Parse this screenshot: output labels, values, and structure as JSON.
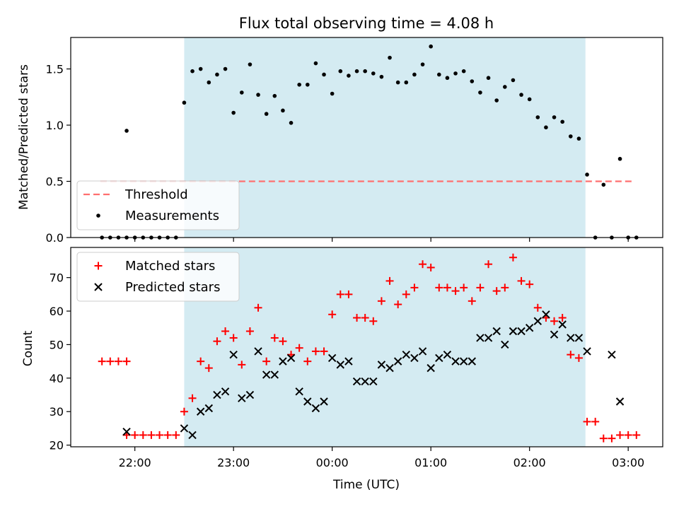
{
  "chart_data": [
    {
      "type": "scatter",
      "title": "Flux total observing time = 4.08 h",
      "xlabel": "",
      "ylabel": "Matched/Predicted stars",
      "ylim": [
        0,
        1.78
      ],
      "yticks": [
        "0.0",
        "0.5",
        "1.0",
        "1.5"
      ],
      "ytick_values": [
        0,
        0.5,
        1.0,
        1.5
      ],
      "xlim": [
        "21:21",
        "03:21"
      ],
      "shaded_region": {
        "from": "22:30",
        "to": "02:34",
        "color": "#add8e6"
      },
      "threshold": {
        "name": "Threshold",
        "value": 0.5,
        "from": "21:39",
        "to": "03:03",
        "color": "#ff6f6f"
      },
      "legend": {
        "position": "lower-left",
        "entries": [
          "Threshold",
          "Measurements"
        ]
      },
      "series": [
        {
          "name": "Measurements",
          "color": "#000000",
          "points": [
            [
              "21:40",
              0.0
            ],
            [
              "21:45",
              0.0
            ],
            [
              "21:50",
              0.0
            ],
            [
              "21:55",
              0.0
            ],
            [
              "21:55",
              0.95
            ],
            [
              "22:00",
              0.0
            ],
            [
              "22:05",
              0.0
            ],
            [
              "22:10",
              0.0
            ],
            [
              "22:15",
              0.0
            ],
            [
              "22:20",
              0.0
            ],
            [
              "22:25",
              0.0
            ],
            [
              "22:30",
              1.2
            ],
            [
              "22:35",
              1.48
            ],
            [
              "22:40",
              1.5
            ],
            [
              "22:45",
              1.38
            ],
            [
              "22:50",
              1.45
            ],
            [
              "22:55",
              1.5
            ],
            [
              "23:00",
              1.11
            ],
            [
              "23:05",
              1.29
            ],
            [
              "23:10",
              1.54
            ],
            [
              "23:15",
              1.27
            ],
            [
              "23:20",
              1.1
            ],
            [
              "23:25",
              1.26
            ],
            [
              "23:30",
              1.13
            ],
            [
              "23:35",
              1.02
            ],
            [
              "23:40",
              1.36
            ],
            [
              "23:45",
              1.36
            ],
            [
              "23:50",
              1.55
            ],
            [
              "23:55",
              1.45
            ],
            [
              "00:00",
              1.28
            ],
            [
              "00:05",
              1.48
            ],
            [
              "00:10",
              1.44
            ],
            [
              "00:15",
              1.48
            ],
            [
              "00:20",
              1.48
            ],
            [
              "00:25",
              1.46
            ],
            [
              "00:30",
              1.43
            ],
            [
              "00:35",
              1.6
            ],
            [
              "00:40",
              1.38
            ],
            [
              "00:45",
              1.38
            ],
            [
              "00:50",
              1.45
            ],
            [
              "00:55",
              1.54
            ],
            [
              "01:00",
              1.7
            ],
            [
              "01:05",
              1.45
            ],
            [
              "01:10",
              1.42
            ],
            [
              "01:15",
              1.46
            ],
            [
              "01:20",
              1.48
            ],
            [
              "01:25",
              1.39
            ],
            [
              "01:30",
              1.29
            ],
            [
              "01:35",
              1.42
            ],
            [
              "01:40",
              1.22
            ],
            [
              "01:45",
              1.34
            ],
            [
              "01:50",
              1.4
            ],
            [
              "01:55",
              1.27
            ],
            [
              "02:00",
              1.23
            ],
            [
              "02:05",
              1.07
            ],
            [
              "02:10",
              0.98
            ],
            [
              "02:15",
              1.07
            ],
            [
              "02:20",
              1.03
            ],
            [
              "02:25",
              0.9
            ],
            [
              "02:30",
              0.88
            ],
            [
              "02:35",
              0.56
            ],
            [
              "02:40",
              0.0
            ],
            [
              "02:45",
              0.47
            ],
            [
              "02:50",
              0.0
            ],
            [
              "02:55",
              0.7
            ],
            [
              "03:00",
              0.0
            ],
            [
              "03:05",
              0.0
            ]
          ]
        }
      ]
    },
    {
      "type": "scatter",
      "title": "",
      "xlabel": "Time (UTC)",
      "ylabel": "Count",
      "ylim": [
        19.5,
        79
      ],
      "yticks": [
        "20",
        "30",
        "40",
        "50",
        "60",
        "70"
      ],
      "ytick_values": [
        20,
        30,
        40,
        50,
        60,
        70
      ],
      "xlim": [
        "21:21",
        "03:21"
      ],
      "xticks": [
        "22:00",
        "23:00",
        "00:00",
        "01:00",
        "02:00",
        "03:00"
      ],
      "shaded_region": {
        "from": "22:30",
        "to": "02:34",
        "color": "#add8e6"
      },
      "legend": {
        "position": "upper-left",
        "entries": [
          "Matched stars",
          "Predicted stars"
        ]
      },
      "series": [
        {
          "name": "Matched stars",
          "marker": "plus",
          "color": "#ff0000",
          "points": [
            [
              "21:40",
              45
            ],
            [
              "21:45",
              45
            ],
            [
              "21:50",
              45
            ],
            [
              "21:55",
              45
            ],
            [
              "21:55",
              23
            ],
            [
              "22:00",
              23
            ],
            [
              "22:05",
              23
            ],
            [
              "22:10",
              23
            ],
            [
              "22:15",
              23
            ],
            [
              "22:20",
              23
            ],
            [
              "22:25",
              23
            ],
            [
              "22:30",
              30
            ],
            [
              "22:35",
              34
            ],
            [
              "22:40",
              45
            ],
            [
              "22:45",
              43
            ],
            [
              "22:50",
              51
            ],
            [
              "22:55",
              54
            ],
            [
              "23:00",
              52
            ],
            [
              "23:05",
              44
            ],
            [
              "23:10",
              54
            ],
            [
              "23:15",
              61
            ],
            [
              "23:20",
              45
            ],
            [
              "23:25",
              52
            ],
            [
              "23:30",
              51
            ],
            [
              "23:35",
              47
            ],
            [
              "23:40",
              49
            ],
            [
              "23:45",
              45
            ],
            [
              "23:50",
              48
            ],
            [
              "23:55",
              48
            ],
            [
              "00:00",
              59
            ],
            [
              "00:05",
              65
            ],
            [
              "00:10",
              65
            ],
            [
              "00:15",
              58
            ],
            [
              "00:20",
              58
            ],
            [
              "00:25",
              57
            ],
            [
              "00:30",
              63
            ],
            [
              "00:35",
              69
            ],
            [
              "00:40",
              62
            ],
            [
              "00:45",
              65
            ],
            [
              "00:50",
              67
            ],
            [
              "00:55",
              74
            ],
            [
              "01:00",
              73
            ],
            [
              "01:05",
              67
            ],
            [
              "01:10",
              67
            ],
            [
              "01:15",
              66
            ],
            [
              "01:20",
              67
            ],
            [
              "01:25",
              63
            ],
            [
              "01:30",
              67
            ],
            [
              "01:35",
              74
            ],
            [
              "01:40",
              66
            ],
            [
              "01:45",
              67
            ],
            [
              "01:50",
              76
            ],
            [
              "01:55",
              69
            ],
            [
              "02:00",
              68
            ],
            [
              "02:05",
              61
            ],
            [
              "02:10",
              58
            ],
            [
              "02:15",
              57
            ],
            [
              "02:20",
              58
            ],
            [
              "02:25",
              47
            ],
            [
              "02:30",
              46
            ],
            [
              "02:35",
              27
            ],
            [
              "02:40",
              27
            ],
            [
              "02:45",
              22
            ],
            [
              "02:50",
              22
            ],
            [
              "02:55",
              23
            ],
            [
              "03:00",
              23
            ],
            [
              "03:05",
              23
            ]
          ]
        },
        {
          "name": "Predicted stars",
          "marker": "x",
          "color": "#000000",
          "points": [
            [
              "21:55",
              24
            ],
            [
              "22:30",
              25
            ],
            [
              "22:35",
              23
            ],
            [
              "22:40",
              30
            ],
            [
              "22:45",
              31
            ],
            [
              "22:50",
              35
            ],
            [
              "22:55",
              36
            ],
            [
              "23:00",
              47
            ],
            [
              "23:05",
              34
            ],
            [
              "23:10",
              35
            ],
            [
              "23:15",
              48
            ],
            [
              "23:20",
              41
            ],
            [
              "23:25",
              41
            ],
            [
              "23:30",
              45
            ],
            [
              "23:35",
              46
            ],
            [
              "23:40",
              36
            ],
            [
              "23:45",
              33
            ],
            [
              "23:50",
              31
            ],
            [
              "23:55",
              33
            ],
            [
              "00:00",
              46
            ],
            [
              "00:05",
              44
            ],
            [
              "00:10",
              45
            ],
            [
              "00:15",
              39
            ],
            [
              "00:20",
              39
            ],
            [
              "00:25",
              39
            ],
            [
              "00:30",
              44
            ],
            [
              "00:35",
              43
            ],
            [
              "00:40",
              45
            ],
            [
              "00:45",
              47
            ],
            [
              "00:50",
              46
            ],
            [
              "00:55",
              48
            ],
            [
              "01:00",
              43
            ],
            [
              "01:05",
              46
            ],
            [
              "01:10",
              47
            ],
            [
              "01:15",
              45
            ],
            [
              "01:20",
              45
            ],
            [
              "01:25",
              45
            ],
            [
              "01:30",
              52
            ],
            [
              "01:35",
              52
            ],
            [
              "01:40",
              54
            ],
            [
              "01:45",
              50
            ],
            [
              "01:50",
              54
            ],
            [
              "01:55",
              54
            ],
            [
              "02:00",
              55
            ],
            [
              "02:05",
              57
            ],
            [
              "02:10",
              59
            ],
            [
              "02:15",
              53
            ],
            [
              "02:20",
              56
            ],
            [
              "02:25",
              52
            ],
            [
              "02:30",
              52
            ],
            [
              "02:35",
              48
            ],
            [
              "02:50",
              47
            ],
            [
              "02:55",
              33
            ]
          ]
        }
      ]
    }
  ]
}
